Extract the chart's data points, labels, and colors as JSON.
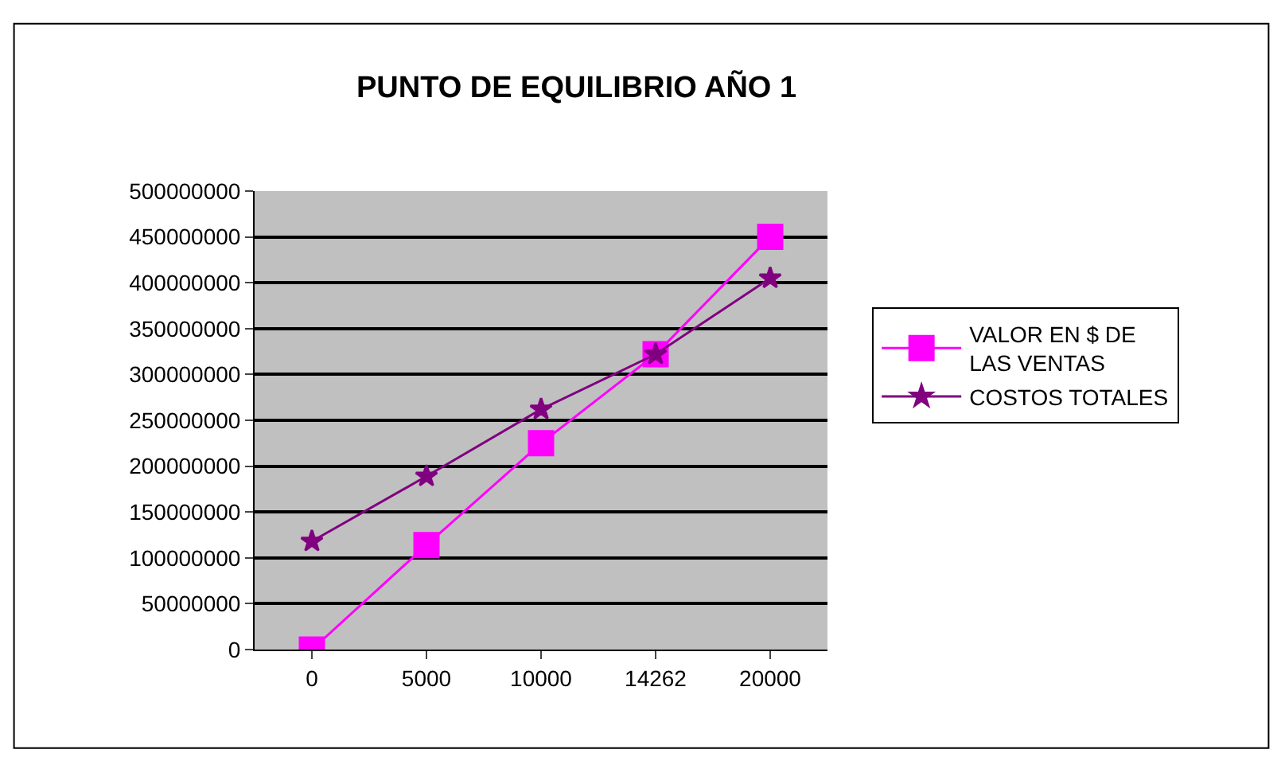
{
  "chart_data": {
    "type": "line",
    "title": "PUNTO DE EQUILIBRIO AÑO 1",
    "categories": [
      "0",
      "5000",
      "10000",
      "14262",
      "20000"
    ],
    "series": [
      {
        "name": "VALOR EN $ DE LAS VENTAS",
        "color": "#ff00ff",
        "marker": "square",
        "values": [
          0,
          114000000,
          225000000,
          322000000,
          450000000
        ]
      },
      {
        "name": "COSTOS TOTALES",
        "color": "#800080",
        "marker": "star",
        "values": [
          118000000,
          189000000,
          262000000,
          322000000,
          405000000
        ]
      }
    ],
    "ylim": [
      0,
      500000000
    ],
    "yticks": [
      0,
      50000000,
      100000000,
      150000000,
      200000000,
      250000000,
      300000000,
      350000000,
      400000000,
      450000000,
      500000000
    ],
    "grid": "y",
    "legend": "right"
  }
}
